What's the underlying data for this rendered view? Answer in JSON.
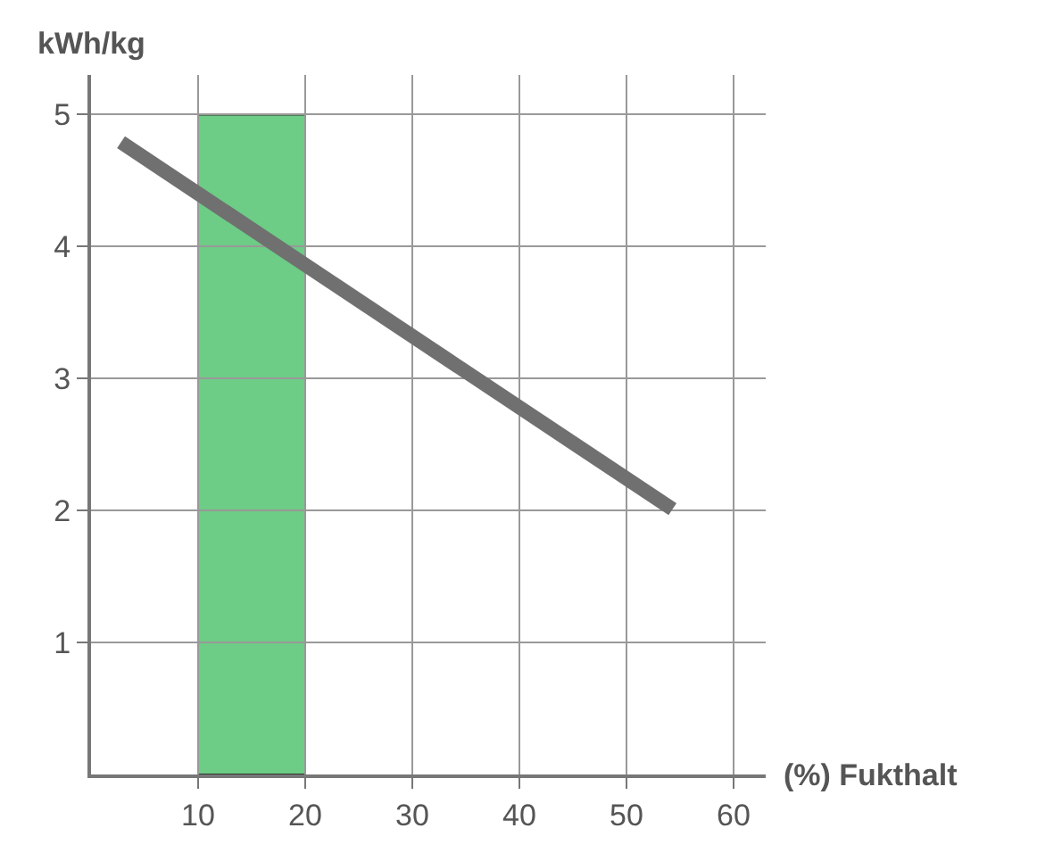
{
  "chart_data": {
    "type": "line",
    "xlabel": "(%) Fukthalt",
    "ylabel": "kWh/kg",
    "x": [
      2.8,
      54.3
    ],
    "series": [
      {
        "color": "#707070",
        "values": [
          4.79,
          2.01
        ]
      }
    ],
    "xlim": [
      0,
      63
    ],
    "ylim": [
      0,
      5.3
    ],
    "xticks": [
      10,
      20,
      30,
      40,
      50,
      60
    ],
    "yticks": [
      1,
      2,
      3,
      4,
      5
    ],
    "bands": [
      {
        "axis": "x",
        "from": 10,
        "to": 20,
        "color": "#6dcc85"
      }
    ],
    "grid": true,
    "marker": "none",
    "line_style": "solid",
    "legend": false
  }
}
